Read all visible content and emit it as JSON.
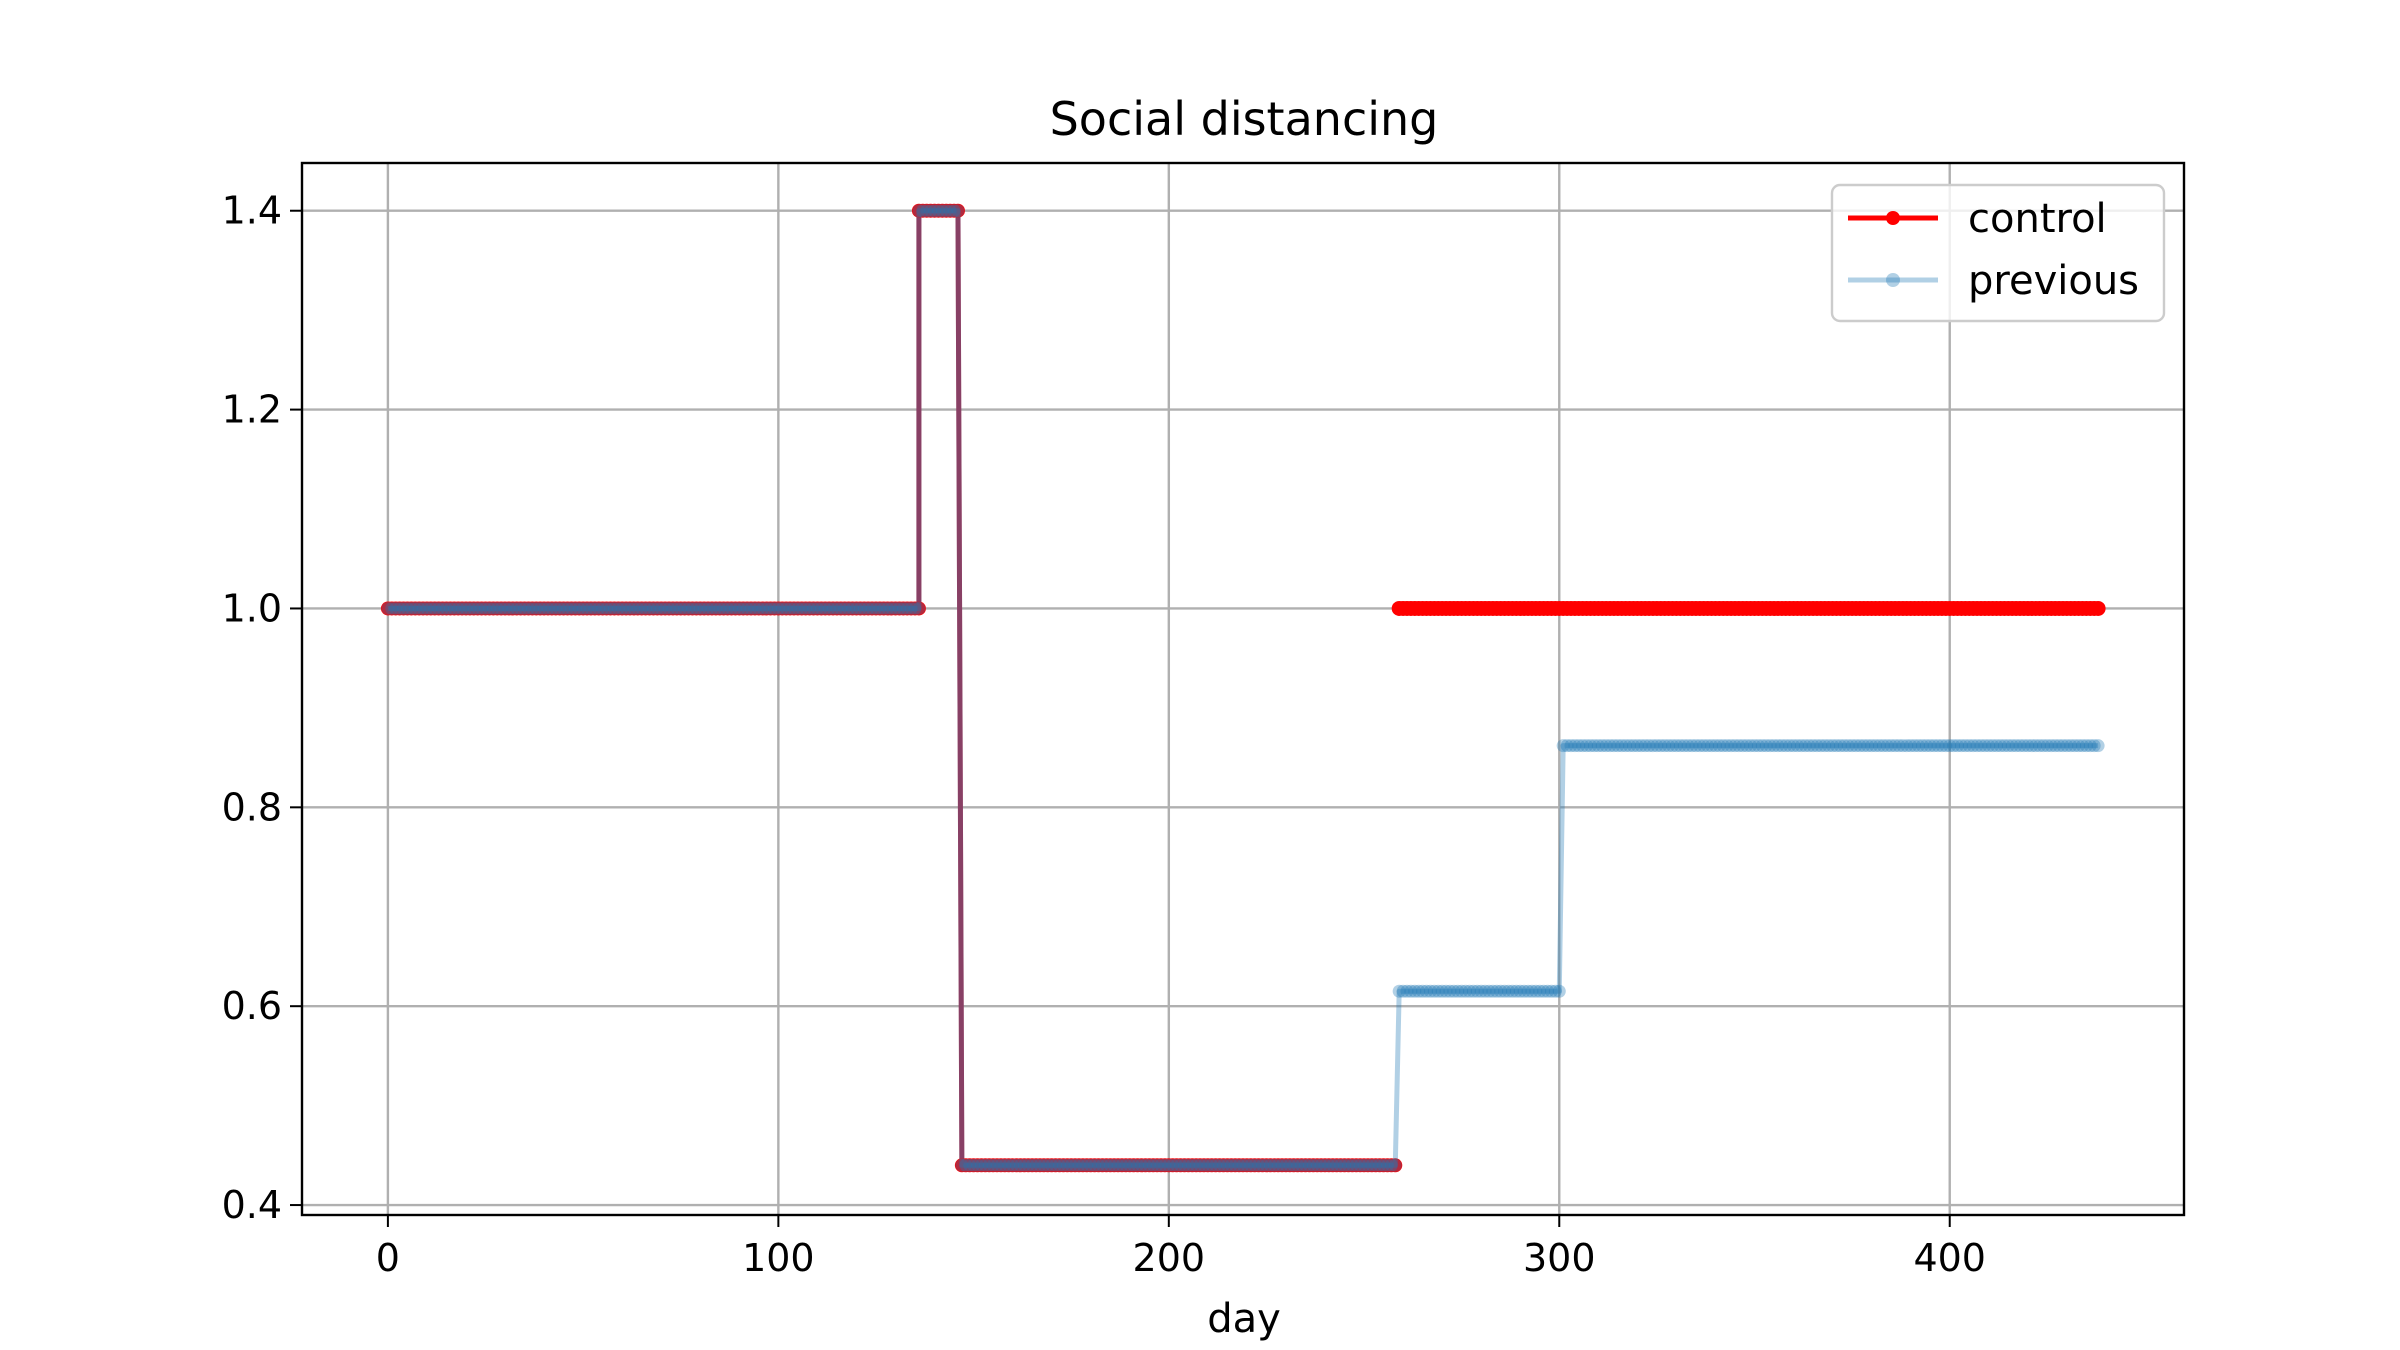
{
  "chart_data": {
    "type": "line",
    "title": "Social distancing",
    "xlabel": "day",
    "ylabel": "",
    "xlim": [
      -22,
      460
    ],
    "ylim": [
      0.39,
      1.448
    ],
    "xticks": [
      0,
      100,
      200,
      300,
      400
    ],
    "yticks": [
      0.4,
      0.6,
      0.8,
      1.0,
      1.2,
      1.4
    ],
    "xtick_labels": [
      "0",
      "100",
      "200",
      "300",
      "400"
    ],
    "ytick_labels": [
      "0.4",
      "0.6",
      "0.8",
      "1.0",
      "1.2",
      "1.4"
    ],
    "grid": true,
    "legend_position": "top-right",
    "series": [
      {
        "name": "previous",
        "color": "#1f77b4",
        "alpha": 0.35,
        "x": [
          0,
          136,
          136,
          146,
          147,
          258,
          259,
          300,
          301,
          438
        ],
        "y": [
          1.0,
          1.0,
          1.4,
          1.4,
          0.44,
          0.44,
          0.615,
          0.615,
          0.862,
          0.862
        ]
      },
      {
        "name": "control",
        "color": "#ff0000",
        "alpha": 1.0,
        "x": [
          0,
          136,
          136,
          146,
          147,
          258,
          259,
          438
        ],
        "y": [
          1.0,
          1.0,
          1.4,
          1.4,
          0.44,
          0.44,
          1.0,
          1.0
        ]
      }
    ],
    "overlap_color": "#c0223b",
    "overlap_until_day": 258
  }
}
